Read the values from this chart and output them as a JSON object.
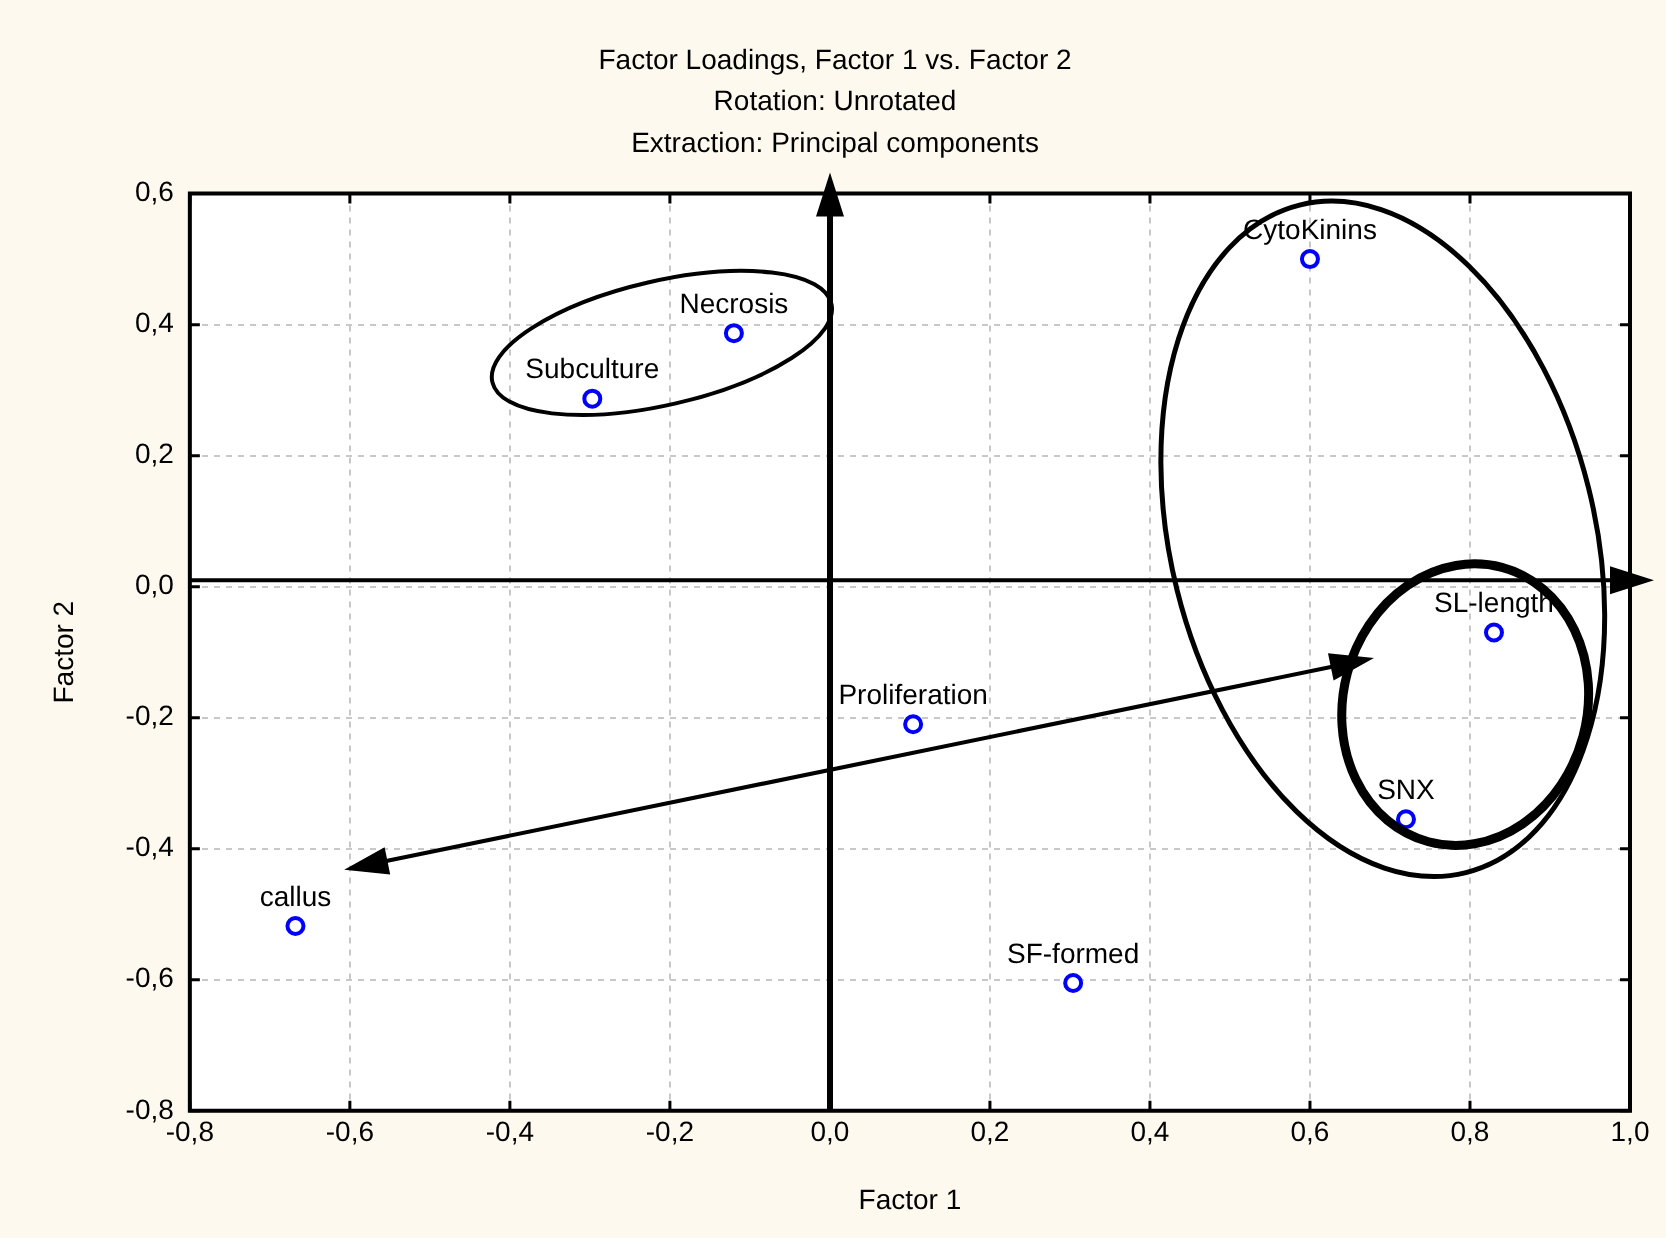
{
  "chart_data": {
    "type": "scatter",
    "title": "Factor Loadings, Factor 1 vs. Factor 2",
    "subtitle": "Rotation: Unrotated",
    "xlabel": "Factor 1",
    "ylabel": "Factor 2",
    "annotations": [
      "Extraction: Principal components",
      {
        "text": "Necrosis",
        "x": -0.12,
        "y": 0.387
      },
      {
        "text": "Subculture",
        "x": -0.297,
        "y": 0.287
      },
      {
        "text": "CytoKinins",
        "x": 0.6,
        "y": 0.5
      },
      {
        "text": "SL-length",
        "x": 0.83,
        "y": -0.07
      },
      {
        "text": "Proliferation",
        "x": 0.104,
        "y": -0.21
      },
      {
        "text": "SNX",
        "x": 0.72,
        "y": -0.355
      },
      {
        "text": "callus",
        "x": -0.668,
        "y": -0.518
      },
      {
        "text": "SF-formed",
        "x": 0.304,
        "y": -0.605
      }
    ],
    "x": [
      -0.12,
      -0.297,
      0.6,
      0.83,
      0.104,
      0.72,
      -0.668,
      0.304
    ],
    "values": [
      0.387,
      0.287,
      0.5,
      -0.07,
      -0.21,
      -0.355,
      -0.518,
      -0.605
    ],
    "color": "#0000ff",
    "marker": "circle",
    "grid": true,
    "legend": false,
    "xlim": [
      -0.8,
      1.0
    ],
    "xticks": [
      {
        "value": -0.8,
        "label": "-0,8"
      },
      {
        "value": -0.6,
        "label": "-0,6"
      },
      {
        "value": -0.4,
        "label": "-0,4"
      },
      {
        "value": -0.2,
        "label": "-0,2"
      },
      {
        "value": 0,
        "label": "0,0"
      },
      {
        "value": 0.2,
        "label": "0,2"
      },
      {
        "value": 0.4,
        "label": "0,4"
      },
      {
        "value": 0.6,
        "label": "0,6"
      },
      {
        "value": 0.8,
        "label": "0,8"
      },
      {
        "value": 1.0,
        "label": "1,0"
      }
    ],
    "ylim": [
      -0.8,
      0.6
    ],
    "yticks": [
      {
        "value": -0.8,
        "label": "-0,8"
      },
      {
        "value": -0.6,
        "label": "-0,6"
      },
      {
        "value": -0.4,
        "label": "-0,4"
      },
      {
        "value": -0.2,
        "label": "-0,2"
      },
      {
        "value": 0,
        "label": "0,0"
      },
      {
        "value": 0.2,
        "label": "0,2"
      },
      {
        "value": 0.4,
        "label": "0,4"
      },
      {
        "value": 0.6,
        "label": "0,6"
      }
    ]
  }
}
